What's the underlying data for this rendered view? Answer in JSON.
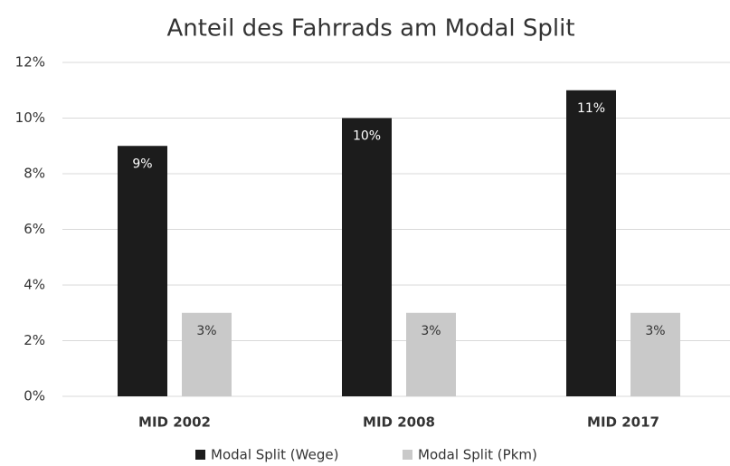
{
  "chart_data": {
    "type": "bar",
    "title": "Anteil des Fahrrads am Modal Split",
    "categories": [
      "MID 2002",
      "MID 2008",
      "MID 2017"
    ],
    "series": [
      {
        "name": "Modal Split (Wege)",
        "color": "#1c1c1c",
        "values": [
          9,
          10,
          11
        ],
        "value_labels": [
          "9%",
          "10%",
          "11%"
        ]
      },
      {
        "name": "Modal Split (Pkm)",
        "color": "#c9c9c9",
        "values": [
          3,
          3,
          3
        ],
        "value_labels": [
          "3%",
          "3%",
          "3%"
        ]
      }
    ],
    "ylim": [
      0,
      12
    ],
    "yticks": [
      {
        "value": 0,
        "label": "0%"
      },
      {
        "value": 2,
        "label": "2%"
      },
      {
        "value": 4,
        "label": "4%"
      },
      {
        "value": 6,
        "label": "6%"
      },
      {
        "value": 8,
        "label": "8%"
      },
      {
        "value": 10,
        "label": "10%"
      },
      {
        "value": 12,
        "label": "12%"
      }
    ],
    "grid": true,
    "legend": "bottom"
  }
}
